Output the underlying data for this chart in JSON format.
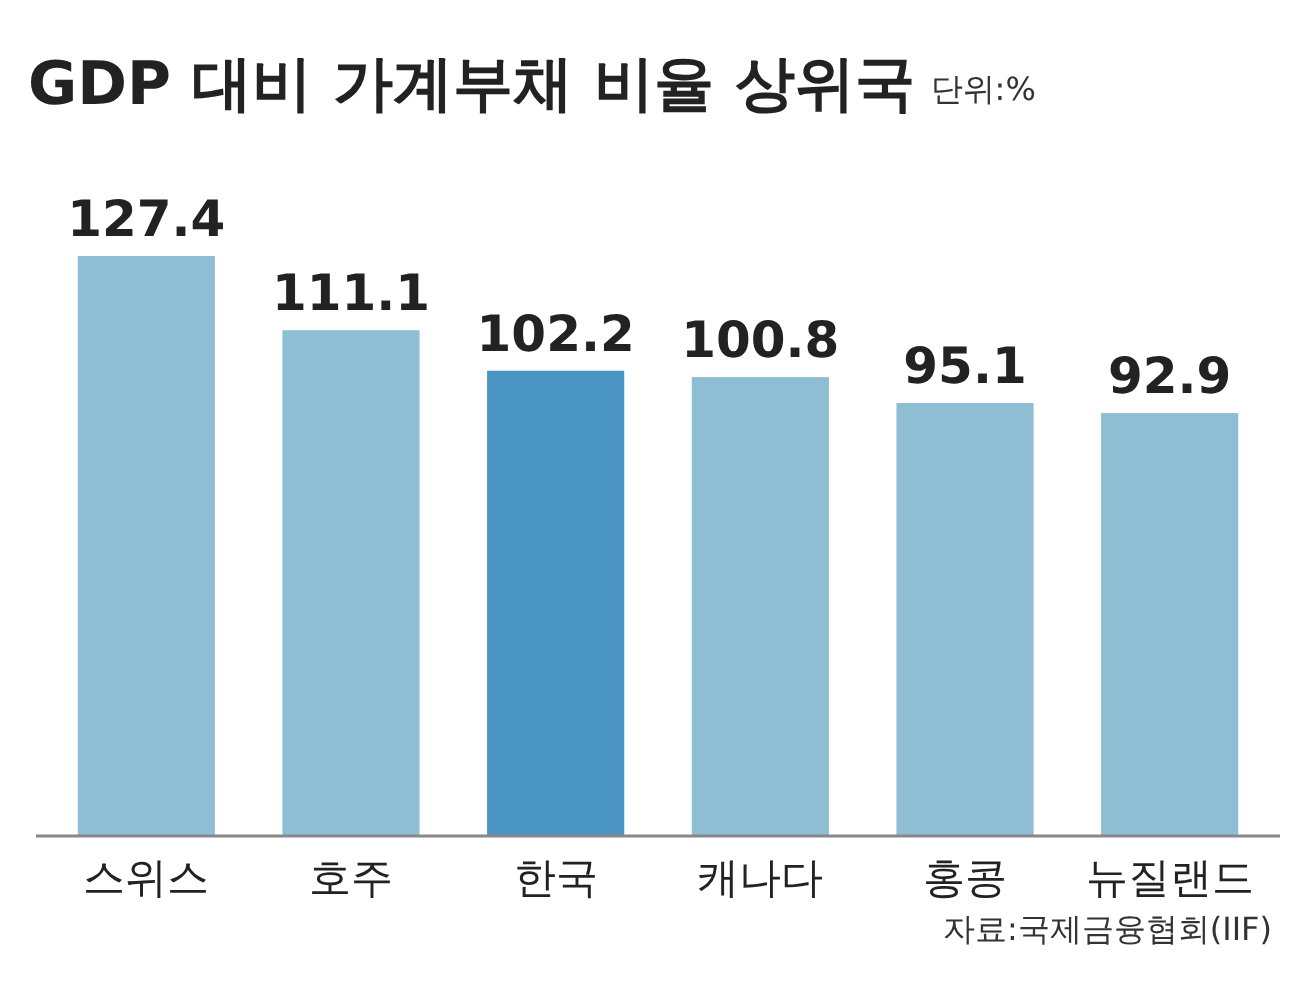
{
  "chart_data": {
    "type": "bar",
    "title": "GDP 대비 가계부채 비율 상위국",
    "subtitle": "단위:%",
    "categories": [
      "스위스",
      "호주",
      "한국",
      "캐나다",
      "홍콩",
      "뉴질랜드"
    ],
    "values": [
      127.4,
      111.1,
      102.2,
      100.8,
      95.1,
      92.9
    ],
    "colors": [
      "#8fbdd4",
      "#8fbdd4",
      "#4a94c3",
      "#8fbdd4",
      "#8fbdd4",
      "#8fbdd4"
    ],
    "data_labels": true,
    "annotations": [
      "자료:국제금융협회(IIF)"
    ]
  }
}
